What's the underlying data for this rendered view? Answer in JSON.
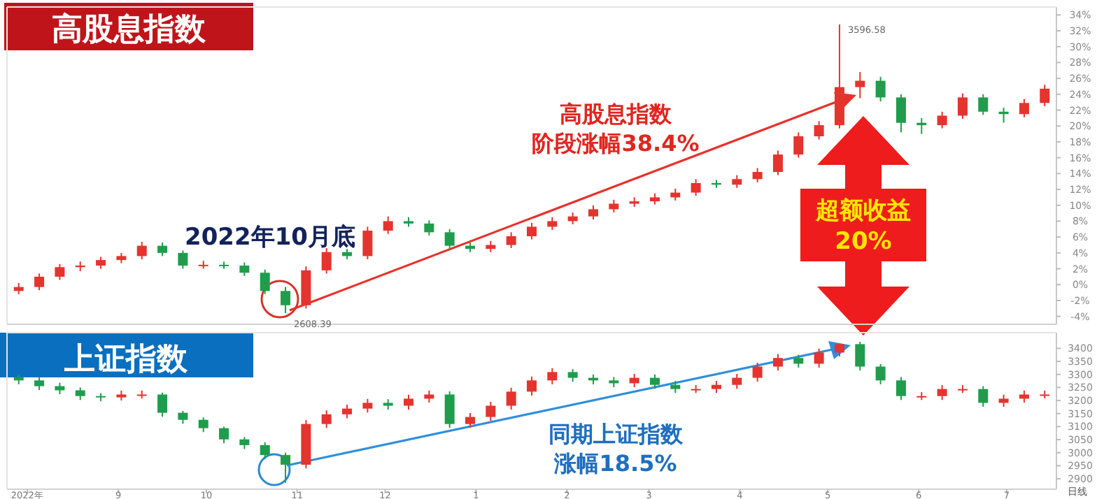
{
  "chart_data": [
    {
      "type": "candlestick",
      "title": "高股息指数",
      "tick_labels": "y",
      "x": [
        "2022-07-29",
        "2022-08-05",
        "2022-08-12",
        "2022-08-19",
        "2022-08-26",
        "2022-09-02",
        "2022-09-09",
        "2022-09-16",
        "2022-09-23",
        "2022-09-30",
        "2022-10-07",
        "2022-10-14",
        "2022-10-21",
        "2022-10-28",
        "2022-11-04",
        "2022-11-11",
        "2022-11-18",
        "2022-11-25",
        "2022-12-02",
        "2022-12-09",
        "2022-12-16",
        "2022-12-23",
        "2022-12-30",
        "2023-01-06",
        "2023-01-13",
        "2023-01-20",
        "2023-01-27",
        "2023-02-03",
        "2023-02-10",
        "2023-02-17",
        "2023-02-24",
        "2023-03-03",
        "2023-03-10",
        "2023-03-17",
        "2023-03-24",
        "2023-03-31",
        "2023-04-07",
        "2023-04-14",
        "2023-04-21",
        "2023-04-28",
        "2023-05-05",
        "2023-05-12",
        "2023-05-19",
        "2023-05-26",
        "2023-06-02",
        "2023-06-09",
        "2023-06-16",
        "2023-06-23",
        "2023-06-30",
        "2023-07-07",
        "2023-07-14"
      ],
      "ohlc": [
        [
          -0.8,
          0.2,
          -1.2,
          -0.3
        ],
        [
          -0.3,
          1.4,
          -0.7,
          1.0
        ],
        [
          1.0,
          2.6,
          0.6,
          2.2
        ],
        [
          2.2,
          2.9,
          1.7,
          2.4
        ],
        [
          2.4,
          3.5,
          2.0,
          3.1
        ],
        [
          3.1,
          4.0,
          2.7,
          3.6
        ],
        [
          3.6,
          5.4,
          3.2,
          4.9
        ],
        [
          4.9,
          5.3,
          3.6,
          4.0
        ],
        [
          4.0,
          4.3,
          2.0,
          2.4
        ],
        [
          2.4,
          3.0,
          2.0,
          2.5
        ],
        [
          2.5,
          2.9,
          2.0,
          2.4
        ],
        [
          2.4,
          2.8,
          1.1,
          1.5
        ],
        [
          1.5,
          1.9,
          -1.2,
          -0.8
        ],
        [
          -0.8,
          -0.3,
          -3.6,
          -2.6
        ],
        [
          -2.6,
          2.3,
          -3.0,
          1.8
        ],
        [
          1.8,
          4.6,
          1.4,
          4.1
        ],
        [
          4.1,
          4.5,
          3.2,
          3.6
        ],
        [
          3.6,
          7.3,
          3.2,
          6.8
        ],
        [
          6.8,
          8.6,
          6.4,
          8.0
        ],
        [
          8.0,
          8.5,
          7.3,
          7.7
        ],
        [
          7.7,
          8.1,
          6.2,
          6.6
        ],
        [
          6.6,
          7.0,
          4.5,
          4.9
        ],
        [
          4.9,
          5.3,
          4.1,
          4.5
        ],
        [
          4.5,
          5.5,
          4.1,
          5.0
        ],
        [
          5.0,
          6.6,
          4.6,
          6.1
        ],
        [
          6.1,
          7.8,
          5.7,
          7.3
        ],
        [
          7.3,
          8.5,
          6.9,
          8.0
        ],
        [
          8.0,
          9.1,
          7.6,
          8.6
        ],
        [
          8.6,
          10.0,
          8.2,
          9.5
        ],
        [
          9.5,
          10.7,
          9.1,
          10.2
        ],
        [
          10.2,
          11.0,
          9.8,
          10.5
        ],
        [
          10.5,
          11.5,
          10.1,
          11.0
        ],
        [
          11.0,
          12.1,
          10.6,
          11.6
        ],
        [
          11.6,
          13.3,
          11.2,
          12.8
        ],
        [
          12.8,
          13.2,
          12.2,
          12.6
        ],
        [
          12.6,
          13.8,
          12.2,
          13.3
        ],
        [
          13.3,
          14.7,
          12.9,
          14.2
        ],
        [
          14.2,
          16.9,
          13.8,
          16.4
        ],
        [
          16.4,
          19.2,
          16.0,
          18.7
        ],
        [
          18.7,
          20.6,
          18.3,
          20.1
        ],
        [
          20.1,
          32.8,
          19.7,
          24.9
        ],
        [
          24.9,
          26.8,
          23.5,
          25.7
        ],
        [
          25.7,
          26.2,
          23.1,
          23.6
        ],
        [
          23.6,
          24.0,
          19.2,
          20.4
        ],
        [
          20.4,
          21.0,
          19.0,
          20.1
        ],
        [
          20.1,
          21.8,
          19.7,
          21.3
        ],
        [
          21.3,
          24.1,
          20.9,
          23.6
        ],
        [
          23.6,
          24.0,
          21.4,
          21.8
        ],
        [
          21.8,
          22.3,
          20.4,
          21.5
        ],
        [
          21.5,
          23.4,
          21.1,
          22.9
        ],
        [
          22.9,
          25.2,
          22.5,
          24.7
        ]
      ],
      "colors": [
        "#e5332e",
        "#e5332e",
        "#e5332e",
        "#e5332e",
        "#e5332e",
        "#e5332e",
        "#e5332e",
        "#1f9d4c",
        "#1f9d4c",
        "#e5332e",
        "#1f9d4c",
        "#1f9d4c",
        "#1f9d4c",
        "#1f9d4c",
        "#e5332e",
        "#e5332e",
        "#1f9d4c",
        "#e5332e",
        "#e5332e",
        "#1f9d4c",
        "#1f9d4c",
        "#1f9d4c",
        "#1f9d4c",
        "#e5332e",
        "#e5332e",
        "#e5332e",
        "#e5332e",
        "#e5332e",
        "#e5332e",
        "#e5332e",
        "#e5332e",
        "#e5332e",
        "#e5332e",
        "#e5332e",
        "#1f9d4c",
        "#e5332e",
        "#e5332e",
        "#e5332e",
        "#e5332e",
        "#e5332e",
        "#e5332e",
        "#e5332e",
        "#1f9d4c",
        "#1f9d4c",
        "#1f9d4c",
        "#e5332e",
        "#e5332e",
        "#1f9d4c",
        "#1f9d4c",
        "#e5332e",
        "#e5332e"
      ],
      "xlim": [
        "2022-07-25",
        "2023-07-18"
      ],
      "ylim": [
        -5,
        35
      ],
      "yticks": [
        {
          "value": -4,
          "label": "-4%"
        },
        {
          "value": -2,
          "label": "-2%"
        },
        {
          "value": 0,
          "label": "0%"
        },
        {
          "value": 2,
          "label": "2%"
        },
        {
          "value": 4,
          "label": "4%"
        },
        {
          "value": 6,
          "label": "6%"
        },
        {
          "value": 8,
          "label": "8%"
        },
        {
          "value": 10,
          "label": "10%"
        },
        {
          "value": 12,
          "label": "12%"
        },
        {
          "value": 14,
          "label": "14%"
        },
        {
          "value": 16,
          "label": "16%"
        },
        {
          "value": 18,
          "label": "18%"
        },
        {
          "value": 20,
          "label": "20%"
        },
        {
          "value": 22,
          "label": "22%"
        },
        {
          "value": 24,
          "label": "24%"
        },
        {
          "value": 26,
          "label": "26%"
        },
        {
          "value": 28,
          "label": "28%"
        },
        {
          "value": 30,
          "label": "30%"
        },
        {
          "value": 32,
          "label": "32%"
        },
        {
          "value": 34,
          "label": "34%"
        }
      ],
      "annotations": [
        "2022年10月底",
        "高股息指数",
        "阶段涨幅38.4%",
        "超额收益",
        "20%",
        {
          "text": "3596.58",
          "x": "2023-05-05",
          "y": 32.8
        },
        {
          "text": "2608.39",
          "x": "2022-10-28",
          "y": -3.6
        }
      ]
    },
    {
      "type": "candlestick",
      "title": "上证指数",
      "x": [
        "2022-07-29",
        "2022-08-05",
        "2022-08-12",
        "2022-08-19",
        "2022-08-26",
        "2022-09-02",
        "2022-09-09",
        "2022-09-16",
        "2022-09-23",
        "2022-09-30",
        "2022-10-07",
        "2022-10-14",
        "2022-10-21",
        "2022-10-28",
        "2022-11-04",
        "2022-11-11",
        "2022-11-18",
        "2022-11-25",
        "2022-12-02",
        "2022-12-09",
        "2022-12-16",
        "2022-12-23",
        "2022-12-30",
        "2023-01-06",
        "2023-01-13",
        "2023-01-20",
        "2023-01-27",
        "2023-02-03",
        "2023-02-10",
        "2023-02-17",
        "2023-02-24",
        "2023-03-03",
        "2023-03-10",
        "2023-03-17",
        "2023-03-24",
        "2023-03-31",
        "2023-04-07",
        "2023-04-14",
        "2023-04-21",
        "2023-04-28",
        "2023-05-05",
        "2023-05-12",
        "2023-05-19",
        "2023-05-26",
        "2023-06-02",
        "2023-06-09",
        "2023-06-16",
        "2023-06-23",
        "2023-06-30",
        "2023-07-07",
        "2023-07-14"
      ],
      "ohlc": [
        [
          3290,
          3300,
          3262,
          3277
        ],
        [
          3277,
          3290,
          3240,
          3255
        ],
        [
          3255,
          3268,
          3224,
          3239
        ],
        [
          3239,
          3250,
          3202,
          3217
        ],
        [
          3217,
          3228,
          3197,
          3212
        ],
        [
          3212,
          3238,
          3200,
          3223
        ],
        [
          3223,
          3238,
          3208,
          3223
        ],
        [
          3223,
          3230,
          3138,
          3153
        ],
        [
          3153,
          3160,
          3111,
          3126
        ],
        [
          3126,
          3135,
          3079,
          3094
        ],
        [
          3094,
          3100,
          3036,
          3051
        ],
        [
          3051,
          3060,
          3014,
          3029
        ],
        [
          3029,
          3040,
          2976,
          2991
        ],
        [
          2991,
          3000,
          2885,
          2954
        ],
        [
          2954,
          3125,
          2940,
          3110
        ],
        [
          3110,
          3162,
          3095,
          3147
        ],
        [
          3147,
          3184,
          3132,
          3169
        ],
        [
          3169,
          3206,
          3154,
          3191
        ],
        [
          3191,
          3205,
          3165,
          3180
        ],
        [
          3180,
          3222,
          3165,
          3207
        ],
        [
          3207,
          3238,
          3192,
          3223
        ],
        [
          3223,
          3235,
          3095,
          3110
        ],
        [
          3110,
          3152,
          3095,
          3137
        ],
        [
          3137,
          3195,
          3122,
          3180
        ],
        [
          3180,
          3249,
          3165,
          3234
        ],
        [
          3234,
          3292,
          3219,
          3277
        ],
        [
          3277,
          3324,
          3262,
          3309
        ],
        [
          3309,
          3320,
          3272,
          3287
        ],
        [
          3287,
          3300,
          3262,
          3277
        ],
        [
          3277,
          3290,
          3251,
          3266
        ],
        [
          3266,
          3302,
          3251,
          3287
        ],
        [
          3287,
          3300,
          3245,
          3260
        ],
        [
          3260,
          3275,
          3229,
          3244
        ],
        [
          3244,
          3259,
          3229,
          3244
        ],
        [
          3244,
          3275,
          3229,
          3260
        ],
        [
          3260,
          3302,
          3245,
          3287
        ],
        [
          3287,
          3345,
          3272,
          3330
        ],
        [
          3330,
          3378,
          3315,
          3363
        ],
        [
          3363,
          3375,
          3326,
          3341
        ],
        [
          3341,
          3399,
          3326,
          3384
        ],
        [
          3384,
          3418,
          3369,
          3416
        ],
        [
          3416,
          3425,
          3315,
          3330
        ],
        [
          3330,
          3340,
          3262,
          3277
        ],
        [
          3277,
          3290,
          3202,
          3217
        ],
        [
          3217,
          3232,
          3202,
          3217
        ],
        [
          3217,
          3259,
          3202,
          3244
        ],
        [
          3244,
          3259,
          3229,
          3244
        ],
        [
          3244,
          3255,
          3176,
          3191
        ],
        [
          3191,
          3222,
          3176,
          3207
        ],
        [
          3207,
          3238,
          3192,
          3223
        ],
        [
          3223,
          3238,
          3208,
          3223
        ]
      ],
      "colors": [
        "#1f9d4c",
        "#1f9d4c",
        "#1f9d4c",
        "#1f9d4c",
        "#1f9d4c",
        "#e5332e",
        "#e5332e",
        "#1f9d4c",
        "#1f9d4c",
        "#1f9d4c",
        "#1f9d4c",
        "#1f9d4c",
        "#1f9d4c",
        "#1f9d4c",
        "#e5332e",
        "#e5332e",
        "#e5332e",
        "#e5332e",
        "#1f9d4c",
        "#e5332e",
        "#e5332e",
        "#1f9d4c",
        "#e5332e",
        "#e5332e",
        "#e5332e",
        "#e5332e",
        "#e5332e",
        "#1f9d4c",
        "#1f9d4c",
        "#1f9d4c",
        "#e5332e",
        "#1f9d4c",
        "#1f9d4c",
        "#e5332e",
        "#e5332e",
        "#e5332e",
        "#e5332e",
        "#e5332e",
        "#1f9d4c",
        "#e5332e",
        "#e5332e",
        "#1f9d4c",
        "#1f9d4c",
        "#1f9d4c",
        "#e5332e",
        "#e5332e",
        "#e5332e",
        "#1f9d4c",
        "#e5332e",
        "#e5332e",
        "#e5332e"
      ],
      "xlim": [
        "2022-07-25",
        "2023-07-18"
      ],
      "xticks": [
        {
          "value": "2022-08-01",
          "label": "2022年"
        },
        {
          "value": "2022-09-01",
          "label": "9"
        },
        {
          "value": "2022-10-01",
          "label": "10"
        },
        {
          "value": "2022-11-01",
          "label": "11"
        },
        {
          "value": "2022-12-01",
          "label": "12"
        },
        {
          "value": "2023-01-01",
          "label": "1"
        },
        {
          "value": "2023-02-01",
          "label": "2"
        },
        {
          "value": "2023-03-01",
          "label": "3"
        },
        {
          "value": "2023-04-01",
          "label": "4"
        },
        {
          "value": "2023-05-01",
          "label": "5"
        },
        {
          "value": "2023-06-01",
          "label": "6"
        },
        {
          "value": "2023-07-01",
          "label": "7"
        }
      ],
      "ylim": [
        2860,
        3460
      ],
      "yticks": [
        2900,
        2950,
        3000,
        3050,
        3100,
        3150,
        3200,
        3250,
        3300,
        3350,
        3400
      ],
      "annotations": [
        "同期上证指数",
        "涨幅18.5%",
        "日线"
      ]
    }
  ]
}
